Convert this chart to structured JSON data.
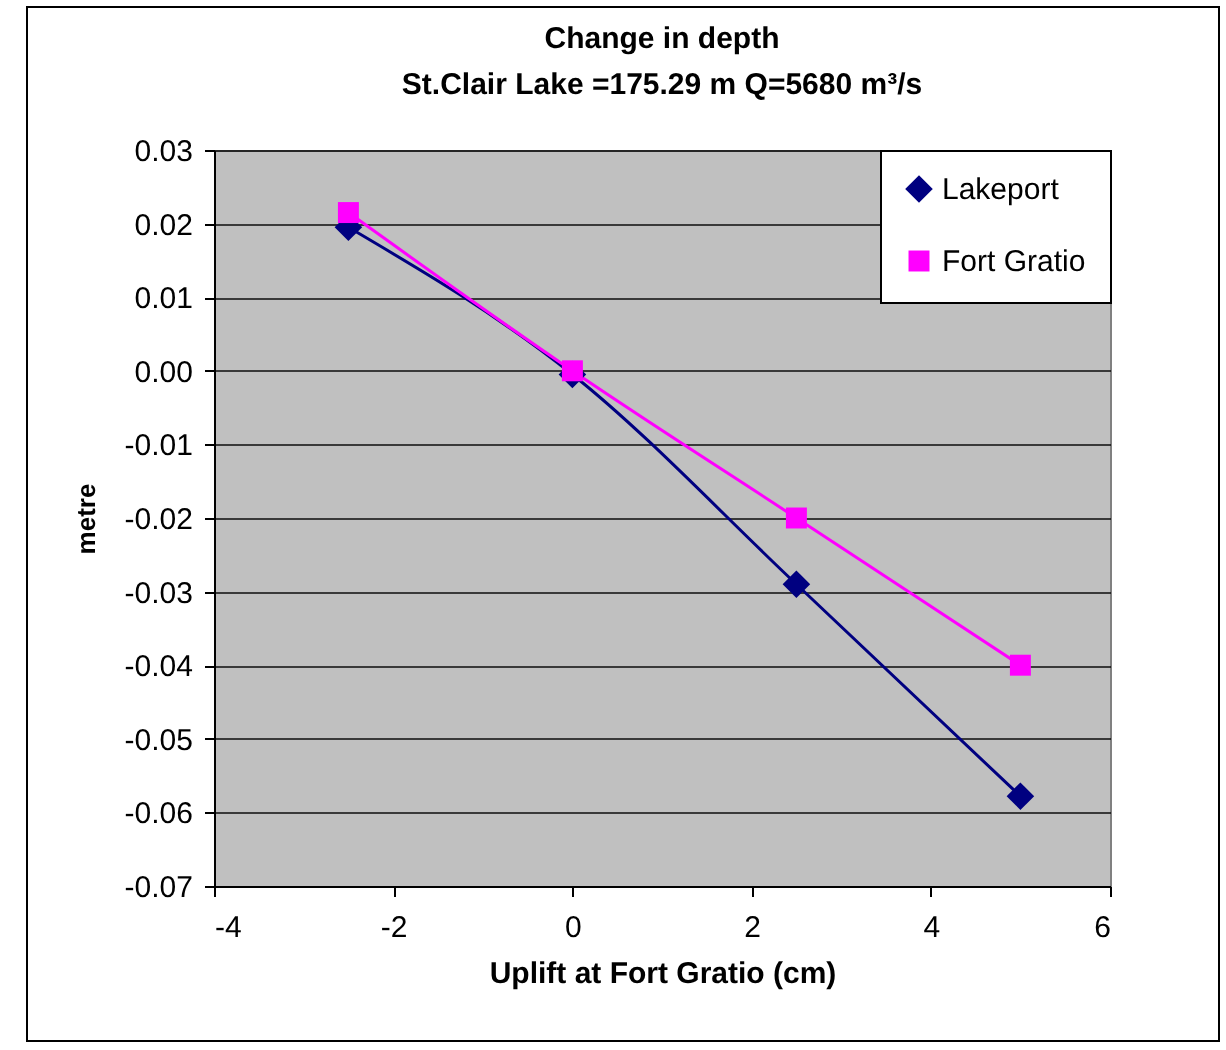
{
  "chart_data": {
    "type": "line",
    "title": "Change in depth",
    "subtitle": "St.Clair Lake =175.29 m        Q=5680 m³/s",
    "xlabel": "Uplift  at Fort Gratio (cm)",
    "ylabel": "metre",
    "x": [
      -2.5,
      0,
      2.5,
      5
    ],
    "series": [
      {
        "name": "Lakeport",
        "color": "#000080",
        "marker": "diamond",
        "values": [
          0.0195,
          -0.0005,
          -0.029,
          -0.0578
        ]
      },
      {
        "name": "Fort Gratio",
        "color": "#ff00ff",
        "marker": "square",
        "values": [
          0.0215,
          0,
          -0.02,
          -0.04
        ]
      }
    ],
    "xlim": [
      -4,
      6
    ],
    "xticks": [
      -4,
      -2,
      0,
      2,
      4,
      6
    ],
    "ylim": [
      -0.07,
      0.03
    ],
    "yticks": [
      0.03,
      0.02,
      0.01,
      {
        "value": 0,
        "label": "0.00"
      },
      -0.01,
      -0.02,
      -0.03,
      -0.04,
      -0.05,
      -0.06,
      -0.07
    ],
    "grid": "y",
    "legend": "top right"
  }
}
